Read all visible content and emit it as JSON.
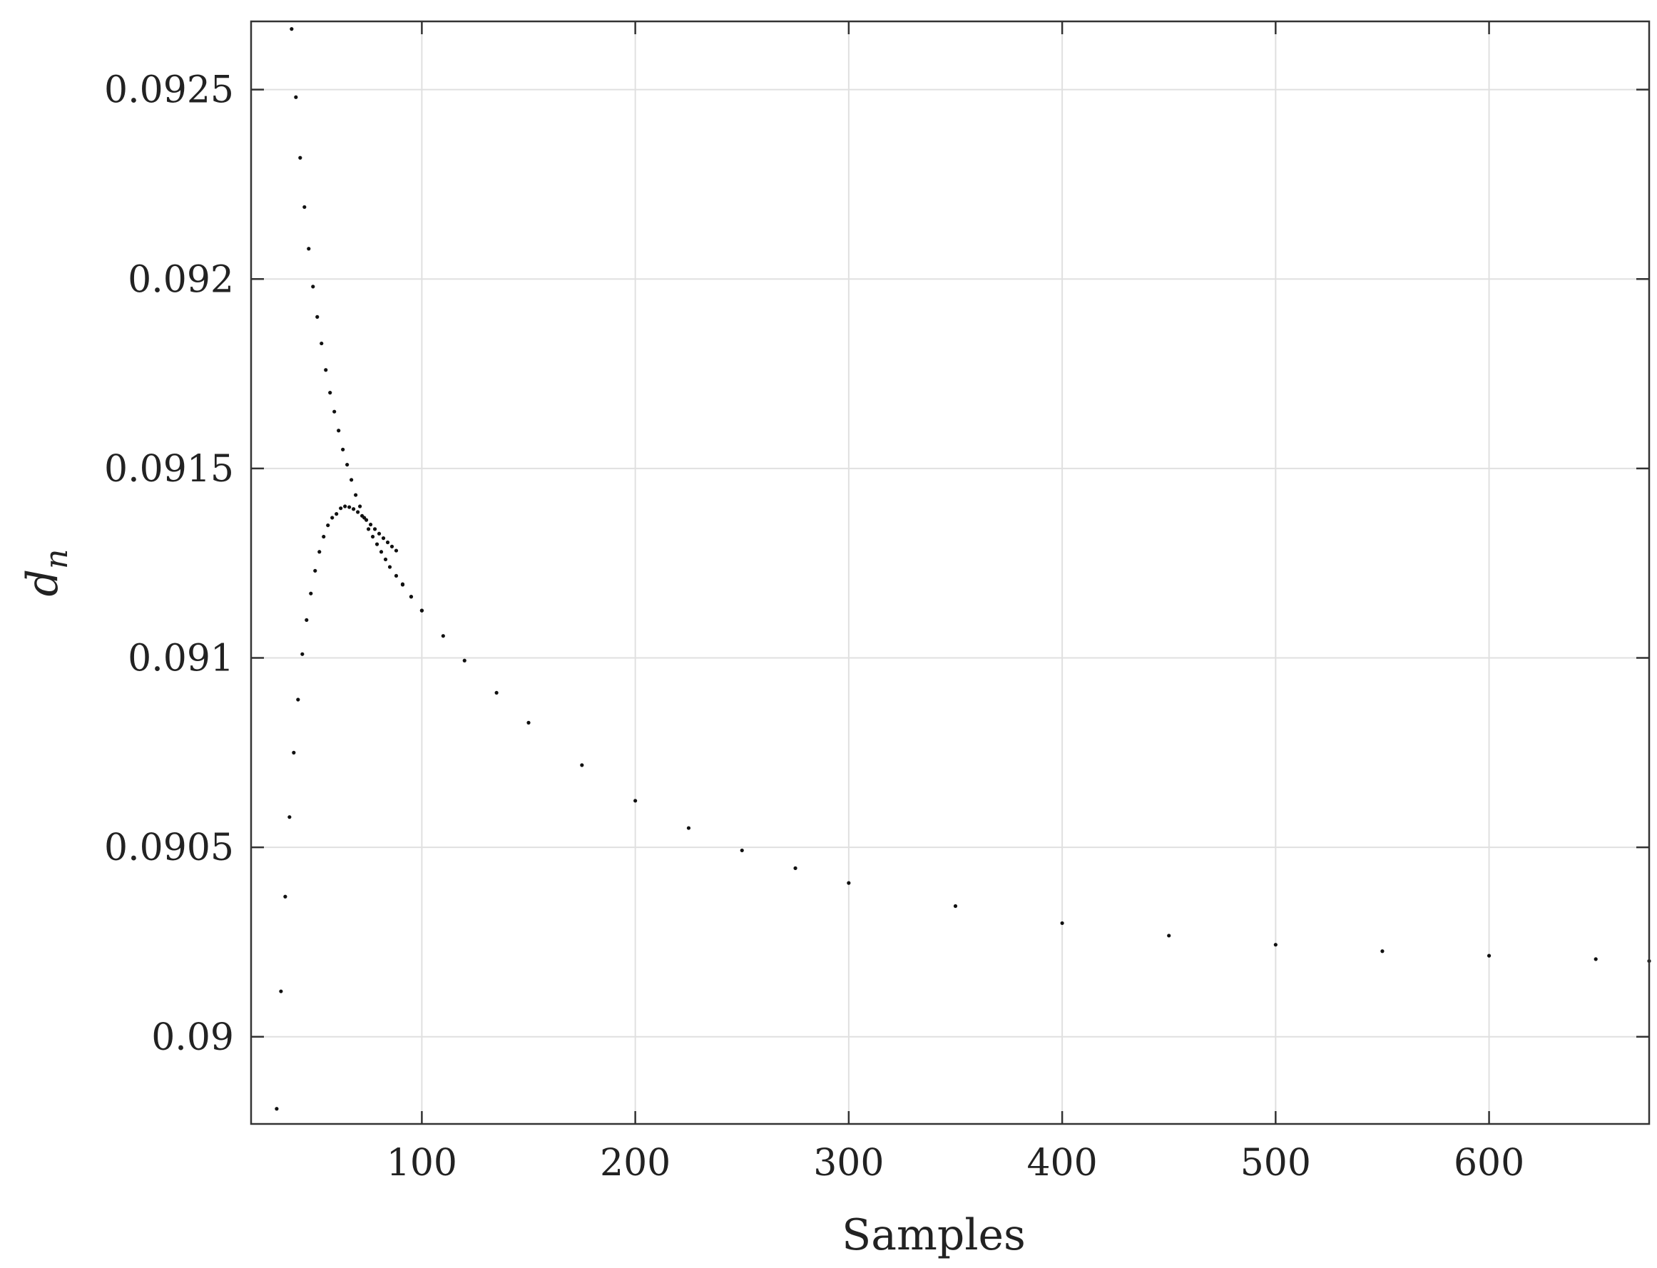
{
  "chart_data": {
    "type": "scatter",
    "title": "",
    "xlabel": "Samples",
    "ylabel": "d",
    "ylabel_subscript": "n",
    "xlim": [
      20,
      675
    ],
    "ylim": [
      0.08977,
      0.09268
    ],
    "xticks": [
      100,
      200,
      300,
      400,
      500,
      600
    ],
    "xtick_labels": [
      "100",
      "200",
      "300",
      "400",
      "500",
      "600"
    ],
    "yticks": [
      0.09,
      0.0905,
      0.091,
      0.0915,
      0.092,
      0.0925
    ],
    "ytick_labels": [
      "0.09",
      "0.0905",
      "0.091",
      "0.0915",
      "0.092",
      "0.0925"
    ],
    "grid": true,
    "legend": "none",
    "marker_color": "#111111",
    "series": [
      {
        "x": [
          39,
          41,
          43,
          45,
          47,
          49,
          51,
          53,
          55,
          57,
          59,
          61,
          63,
          65,
          67,
          69,
          71,
          73,
          75,
          77,
          79,
          81,
          83,
          85,
          88,
          91,
          95,
          100,
          110,
          120,
          135,
          150,
          175,
          200,
          225,
          250,
          275,
          300,
          350,
          400,
          450,
          500,
          550,
          600,
          650,
          675
        ],
        "y": [
          0.09266,
          0.09248,
          0.09232,
          0.09219,
          0.09208,
          0.09198,
          0.0919,
          0.09183,
          0.09176,
          0.0917,
          0.09165,
          0.0916,
          0.09155,
          0.09151,
          0.09147,
          0.09143,
          0.0914,
          0.09137,
          0.09134,
          0.09132,
          0.0913,
          0.09128,
          0.09126,
          0.09124,
          0.0912167,
          0.0911931,
          0.0911614,
          0.091125,
          0.091058,
          0.090993,
          0.090908,
          0.090829,
          0.090717,
          0.090623,
          0.090551,
          0.090492,
          0.090445,
          0.090406,
          0.090345,
          0.0903,
          0.090267,
          0.090243,
          0.090226,
          0.090214,
          0.090205,
          0.0902
        ]
      },
      {
        "x": [
          32,
          34,
          36,
          38,
          40,
          42,
          44,
          46,
          48,
          50,
          52,
          54,
          56,
          58,
          60,
          62,
          64,
          66,
          68,
          70,
          72,
          74,
          76,
          78,
          80,
          82,
          84,
          86,
          88,
          91,
          95,
          100
        ],
        "y": [
          0.08981,
          0.09012,
          0.09037,
          0.09058,
          0.09075,
          0.09089,
          0.09101,
          0.0911,
          0.09117,
          0.09123,
          0.09128,
          0.09132,
          0.09135,
          0.09137,
          0.09138,
          0.091395,
          0.0914,
          0.091398,
          0.091393,
          0.091385,
          0.091375,
          0.091364,
          0.091352,
          0.09134,
          0.091328,
          0.091316,
          0.091305,
          0.091294,
          0.0912832,
          0.0911946,
          0.0911618,
          0.091125
        ]
      }
    ]
  }
}
